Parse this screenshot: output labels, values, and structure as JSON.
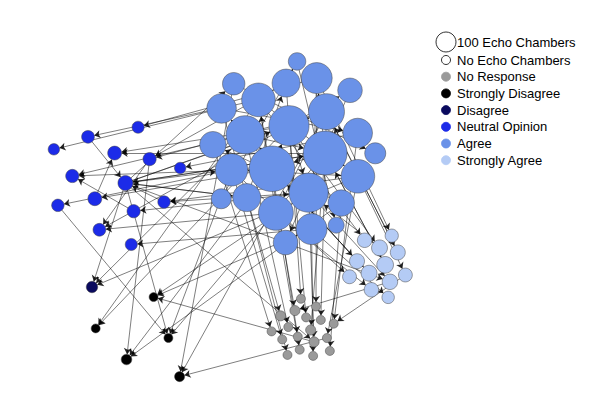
{
  "chart_data": {
    "type": "graph",
    "size_legend": [
      {
        "value": 100,
        "label": "100 Echo Chambers"
      },
      {
        "value": 0,
        "label": "No Echo Chambers"
      }
    ],
    "groups": [
      {
        "name": "No Response",
        "color": "#9a9a9a"
      },
      {
        "name": "Strongly Disagree",
        "color": "#000000"
      },
      {
        "name": "Disagree",
        "color": "#0a0a5e"
      },
      {
        "name": "Neutral Opinion",
        "color": "#1c2be8"
      },
      {
        "name": "Agree",
        "color": "#6a92e8"
      },
      {
        "name": "Strongly Agree",
        "color": "#b4cbf5"
      }
    ],
    "nodes": [
      {
        "group": "Agree",
        "echo_chambers": 1000
      },
      {
        "group": "Agree",
        "echo_chambers": 1100
      },
      {
        "group": "Agree",
        "echo_chambers": 800
      },
      {
        "group": "Agree",
        "echo_chambers": 750
      },
      {
        "group": "Agree",
        "echo_chambers": 700
      },
      {
        "group": "Agree",
        "echo_chambers": 600
      },
      {
        "group": "Agree",
        "echo_chambers": 550
      },
      {
        "group": "Agree",
        "echo_chambers": 500
      },
      {
        "group": "Agree",
        "echo_chambers": 500
      },
      {
        "group": "Agree",
        "echo_chambers": 450
      },
      {
        "group": "Agree",
        "echo_chambers": 400
      },
      {
        "group": "Agree",
        "echo_chambers": 400
      },
      {
        "group": "Agree",
        "echo_chambers": 350
      },
      {
        "group": "Agree",
        "echo_chambers": 350
      },
      {
        "group": "Agree",
        "echo_chambers": 300
      },
      {
        "group": "Agree",
        "echo_chambers": 300
      },
      {
        "group": "Agree",
        "echo_chambers": 250
      },
      {
        "group": "Agree",
        "echo_chambers": 250
      },
      {
        "group": "Agree",
        "echo_chambers": 200
      },
      {
        "group": "Agree",
        "echo_chambers": 200
      },
      {
        "group": "Agree",
        "echo_chambers": 150
      },
      {
        "group": "Agree",
        "echo_chambers": 120
      },
      {
        "group": "Agree",
        "echo_chambers": 100
      },
      {
        "group": "Agree",
        "echo_chambers": 60
      },
      {
        "group": "Agree",
        "echo_chambers": 40
      },
      {
        "group": "Strongly Agree",
        "echo_chambers": 50
      },
      {
        "group": "Strongly Agree",
        "echo_chambers": 40
      },
      {
        "group": "Strongly Agree",
        "echo_chambers": 40
      },
      {
        "group": "Strongly Agree",
        "echo_chambers": 35
      },
      {
        "group": "Strongly Agree",
        "echo_chambers": 30
      },
      {
        "group": "Strongly Agree",
        "echo_chambers": 30
      },
      {
        "group": "Strongly Agree",
        "echo_chambers": 25
      },
      {
        "group": "Strongly Agree",
        "echo_chambers": 25
      },
      {
        "group": "Strongly Agree",
        "echo_chambers": 20
      },
      {
        "group": "Strongly Agree",
        "echo_chambers": 20
      },
      {
        "group": "Strongly Agree",
        "echo_chambers": 15
      },
      {
        "group": "Strongly Agree",
        "echo_chambers": 10
      },
      {
        "group": "No Response",
        "echo_chambers": 1
      },
      {
        "group": "No Response",
        "echo_chambers": 0
      },
      {
        "group": "No Response",
        "echo_chambers": 0
      },
      {
        "group": "No Response",
        "echo_chambers": 1
      },
      {
        "group": "No Response",
        "echo_chambers": 0
      },
      {
        "group": "No Response",
        "echo_chambers": 0
      },
      {
        "group": "No Response",
        "echo_chambers": 0
      },
      {
        "group": "No Response",
        "echo_chambers": 1
      },
      {
        "group": "No Response",
        "echo_chambers": 0
      },
      {
        "group": "No Response",
        "echo_chambers": 0
      },
      {
        "group": "No Response",
        "echo_chambers": 0
      },
      {
        "group": "No Response",
        "echo_chambers": 0
      },
      {
        "group": "No Response",
        "echo_chambers": 1
      },
      {
        "group": "No Response",
        "echo_chambers": 0
      },
      {
        "group": "No Response",
        "echo_chambers": 0
      },
      {
        "group": "No Response",
        "echo_chambers": 0
      },
      {
        "group": "No Response",
        "echo_chambers": 0
      },
      {
        "group": "No Response",
        "echo_chambers": 0
      },
      {
        "group": "Neutral Opinion",
        "echo_chambers": 30
      },
      {
        "group": "Neutral Opinion",
        "echo_chambers": 20
      },
      {
        "group": "Neutral Opinion",
        "echo_chambers": 20
      },
      {
        "group": "Neutral Opinion",
        "echo_chambers": 15
      },
      {
        "group": "Neutral Opinion",
        "echo_chambers": 15
      },
      {
        "group": "Neutral Opinion",
        "echo_chambers": 15
      },
      {
        "group": "Neutral Opinion",
        "echo_chambers": 12
      },
      {
        "group": "Neutral Opinion",
        "echo_chambers": 12
      },
      {
        "group": "Neutral Opinion",
        "echo_chambers": 10
      },
      {
        "group": "Neutral Opinion",
        "echo_chambers": 10
      },
      {
        "group": "Neutral Opinion",
        "echo_chambers": 8
      },
      {
        "group": "Neutral Opinion",
        "echo_chambers": 8
      },
      {
        "group": "Neutral Opinion",
        "echo_chambers": 5
      },
      {
        "group": "Neutral Opinion",
        "echo_chambers": 5
      },
      {
        "group": "Disagree",
        "echo_chambers": 5
      },
      {
        "group": "Strongly Disagree",
        "echo_chambers": 0
      },
      {
        "group": "Strongly Disagree",
        "echo_chambers": 2
      },
      {
        "group": "Strongly Disagree",
        "echo_chambers": 0
      },
      {
        "group": "Strongly Disagree",
        "echo_chambers": 1
      },
      {
        "group": "Strongly Disagree",
        "echo_chambers": 0
      }
    ],
    "links": [
      [
        0,
        55
      ],
      [
        1,
        56
      ],
      [
        2,
        57
      ],
      [
        3,
        58
      ],
      [
        4,
        59
      ],
      [
        5,
        60
      ],
      [
        6,
        61
      ],
      [
        7,
        62
      ],
      [
        8,
        63
      ],
      [
        9,
        64
      ],
      [
        10,
        65
      ],
      [
        11,
        66
      ],
      [
        12,
        67
      ],
      [
        13,
        68
      ],
      [
        0,
        57
      ],
      [
        1,
        59
      ],
      [
        2,
        61
      ],
      [
        3,
        63
      ],
      [
        14,
        55
      ],
      [
        15,
        60
      ],
      [
        55,
        0
      ],
      [
        55,
        2
      ],
      [
        55,
        5
      ],
      [
        55,
        9
      ],
      [
        55,
        14
      ],
      [
        55,
        20
      ],
      [
        55,
        28
      ],
      [
        55,
        40
      ],
      [
        0,
        70
      ],
      [
        1,
        71
      ],
      [
        3,
        72
      ],
      [
        5,
        73
      ],
      [
        7,
        74
      ],
      [
        9,
        70
      ],
      [
        11,
        72
      ],
      [
        2,
        74
      ],
      [
        16,
        71
      ],
      [
        20,
        73
      ],
      [
        4,
        69
      ],
      [
        8,
        69
      ],
      [
        0,
        37
      ],
      [
        1,
        38
      ],
      [
        2,
        39
      ],
      [
        3,
        40
      ],
      [
        4,
        41
      ],
      [
        5,
        42
      ],
      [
        6,
        43
      ],
      [
        7,
        44
      ],
      [
        8,
        45
      ],
      [
        9,
        46
      ],
      [
        10,
        47
      ],
      [
        11,
        48
      ],
      [
        12,
        49
      ],
      [
        13,
        50
      ],
      [
        14,
        51
      ],
      [
        15,
        52
      ],
      [
        16,
        53
      ],
      [
        17,
        54
      ],
      [
        0,
        25
      ],
      [
        1,
        26
      ],
      [
        2,
        27
      ],
      [
        3,
        28
      ],
      [
        4,
        29
      ],
      [
        5,
        30
      ],
      [
        6,
        31
      ],
      [
        7,
        32
      ],
      [
        8,
        33
      ],
      [
        9,
        34
      ],
      [
        10,
        35
      ],
      [
        11,
        36
      ],
      [
        0,
        1
      ],
      [
        1,
        2
      ],
      [
        2,
        3
      ],
      [
        3,
        4
      ],
      [
        4,
        0
      ],
      [
        5,
        6
      ],
      [
        6,
        7
      ],
      [
        7,
        8
      ],
      [
        8,
        9
      ],
      [
        10,
        11
      ],
      [
        12,
        13
      ],
      [
        14,
        15
      ],
      [
        16,
        17
      ],
      [
        18,
        19
      ],
      [
        20,
        21
      ],
      [
        22,
        23
      ],
      [
        23,
        24
      ],
      [
        0,
        10
      ],
      [
        1,
        12
      ],
      [
        2,
        18
      ],
      [
        25,
        0
      ],
      [
        26,
        1
      ],
      [
        27,
        3
      ],
      [
        30,
        5
      ],
      [
        56,
        57
      ],
      [
        58,
        59
      ],
      [
        60,
        61
      ],
      [
        62,
        55
      ],
      [
        63,
        55
      ],
      [
        40,
        72
      ],
      [
        45,
        73
      ],
      [
        28,
        44
      ],
      [
        33,
        50
      ],
      [
        55,
        70
      ],
      [
        60,
        71
      ],
      [
        64,
        70
      ],
      [
        55,
        69
      ]
    ]
  }
}
